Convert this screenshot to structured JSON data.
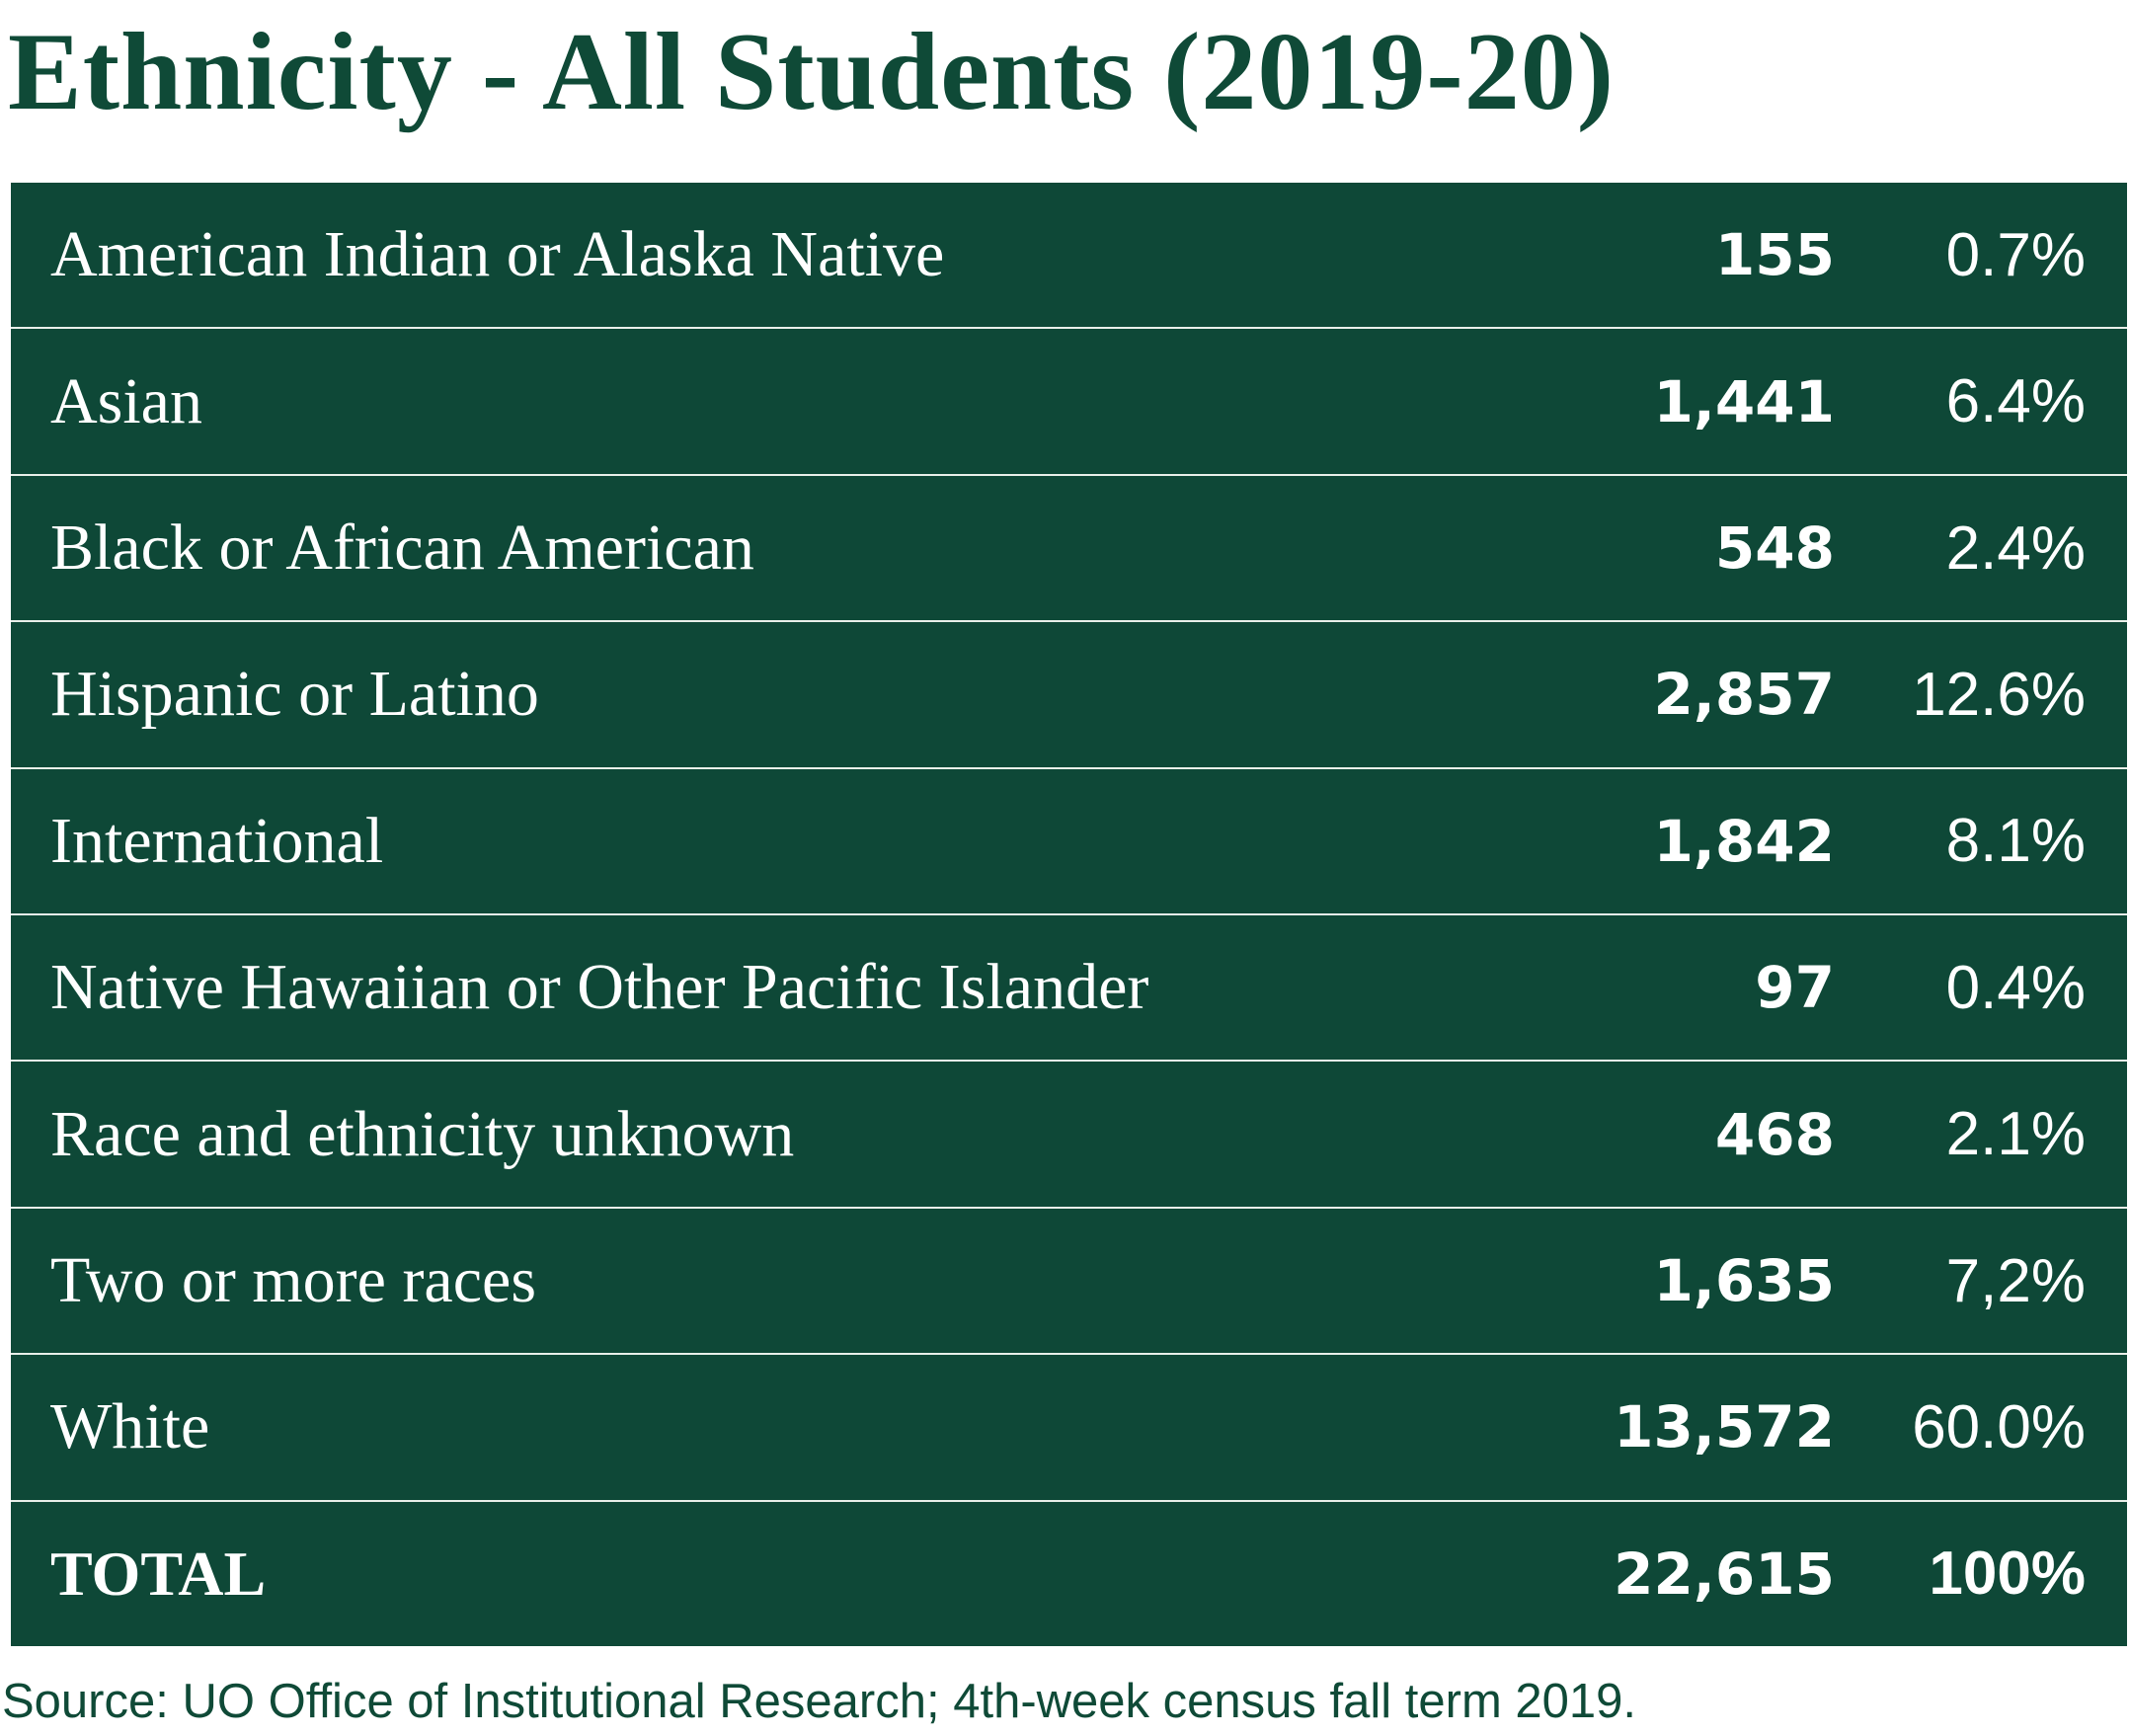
{
  "header": {
    "title": "Ethnicity - All Students (2019-20)"
  },
  "table": {
    "rows": [
      [
        "American Indian or Alaska Native",
        "155",
        "0.7%"
      ],
      [
        "Asian",
        "1,441",
        "6.4%"
      ],
      [
        "Black or African American",
        "548",
        "2.4%"
      ],
      [
        "Hispanic or Latino",
        "2,857",
        "12.6%"
      ],
      [
        "International",
        "1,842",
        "8.1%"
      ],
      [
        "Native Hawaiian or Other Pacific Islander",
        "97",
        "0.4%"
      ],
      [
        "Race and ethnicity unknown",
        "468",
        "2.1%"
      ],
      [
        "Two or more races",
        "1,635",
        "7,2%"
      ],
      [
        "White",
        "13,572",
        "60.0%"
      ],
      [
        "TOTAL",
        "22,615",
        "100%"
      ]
    ]
  },
  "footer": {
    "source": "Source: UO Office of Institutional Research; 4th-week census fall term 2019."
  }
}
